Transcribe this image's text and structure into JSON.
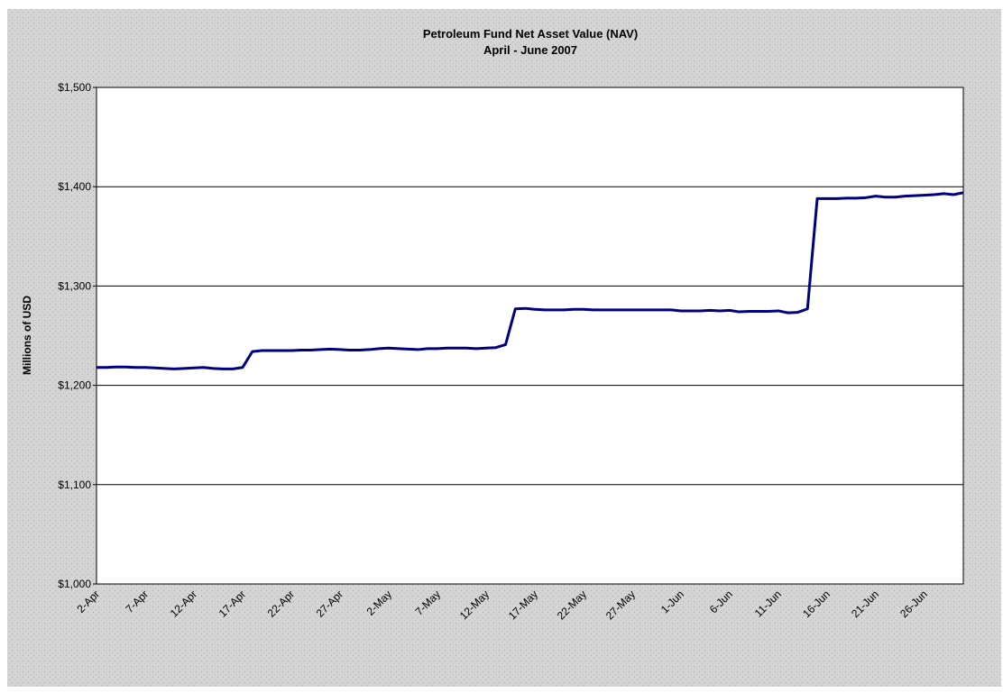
{
  "chart_data": {
    "type": "line",
    "title": "Petroleum Fund Net Asset Value (NAV)",
    "subtitle": "April - June 2007",
    "y_label": "Millions of USD",
    "categories": [
      "2-Apr",
      null,
      null,
      null,
      null,
      "7-Apr",
      null,
      null,
      null,
      null,
      "12-Apr",
      null,
      null,
      null,
      null,
      "17-Apr",
      null,
      null,
      null,
      null,
      "22-Apr",
      null,
      null,
      null,
      null,
      "27-Apr",
      null,
      null,
      null,
      null,
      "2-May",
      null,
      null,
      null,
      null,
      "7-May",
      null,
      null,
      null,
      null,
      "12-May",
      null,
      null,
      null,
      null,
      "17-May",
      null,
      null,
      null,
      null,
      "22-May",
      null,
      null,
      null,
      null,
      "27-May",
      null,
      null,
      null,
      null,
      "1-Jun",
      null,
      null,
      null,
      null,
      "6-Jun",
      null,
      null,
      null,
      null,
      "11-Jun",
      null,
      null,
      null,
      null,
      "16-Jun",
      null,
      null,
      null,
      null,
      "21-Jun",
      null,
      null,
      null,
      null,
      "26-Jun",
      null,
      null,
      null,
      null
    ],
    "series": [
      {
        "name": "NAV",
        "color": "#000080",
        "values": [
          1218,
          1218,
          1218.5,
          1218.5,
          1218,
          1218,
          1217.5,
          1217,
          1216.5,
          1217,
          1217.5,
          1218,
          1217,
          1216.5,
          1216.5,
          1218,
          1234,
          1235,
          1235,
          1235,
          1235,
          1235.5,
          1235.5,
          1236,
          1236.5,
          1236,
          1235.5,
          1235.5,
          1236,
          1237,
          1237.5,
          1237,
          1236.5,
          1236,
          1237,
          1237,
          1237.5,
          1237.5,
          1237.5,
          1237,
          1237.5,
          1238,
          1241,
          1277,
          1277.5,
          1276.5,
          1276,
          1276,
          1276,
          1276.5,
          1276.5,
          1276,
          1276,
          1276,
          1276,
          1276,
          1276,
          1276,
          1276,
          1276,
          1275,
          1275,
          1275,
          1275.5,
          1275,
          1275.5,
          1274,
          1274.5,
          1274.5,
          1274.5,
          1275,
          1273,
          1273.5,
          1277,
          1388,
          1388,
          1388,
          1388.5,
          1388.5,
          1389,
          1390.5,
          1389.5,
          1389.5,
          1390.5,
          1391,
          1391.5,
          1392,
          1393,
          1392,
          1394
        ]
      }
    ],
    "ylim": [
      1000,
      1500
    ],
    "yticks": [
      {
        "value": 1000,
        "label": "$1,000"
      },
      {
        "value": 1100,
        "label": "$1,100"
      },
      {
        "value": 1200,
        "label": "$1,200"
      },
      {
        "value": 1300,
        "label": "$1,300"
      },
      {
        "value": 1400,
        "label": "$1,400"
      },
      {
        "value": 1500,
        "label": "$1,500"
      }
    ],
    "grid": true
  }
}
